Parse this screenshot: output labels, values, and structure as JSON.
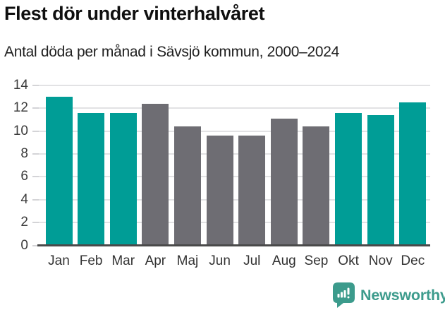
{
  "header": {
    "title": "Flest dör under vinterhalvåret",
    "subtitle": "Antal döda per månad i Sävsjö kommun, 2000–2024"
  },
  "chart_data": {
    "type": "bar",
    "title": "Flest dör under vinterhalvåret",
    "subtitle": "Antal döda per månad i Sävsjö kommun, 2000–2024",
    "categories": [
      "Jan",
      "Feb",
      "Mar",
      "Apr",
      "Maj",
      "Jun",
      "Jul",
      "Aug",
      "Sep",
      "Okt",
      "Nov",
      "Dec"
    ],
    "values": [
      13.0,
      11.6,
      11.6,
      12.4,
      10.4,
      9.6,
      9.6,
      11.1,
      10.4,
      11.6,
      11.4,
      12.5
    ],
    "winter_mask": [
      1,
      1,
      1,
      0,
      0,
      0,
      0,
      0,
      0,
      1,
      1,
      1
    ],
    "bar_colors_by_season": {
      "winter": "#009d96",
      "summer": "#6e6d73"
    },
    "ylim": [
      0,
      14
    ],
    "yticks": [
      0,
      2,
      4,
      6,
      8,
      10,
      12,
      14
    ],
    "grid": "horizontal",
    "legend": "none"
  },
  "colors": {
    "gridline": "#e2e2e4",
    "tick_mark": "#d4d4d7",
    "axis_line": "#4a4a4a",
    "title_text": "#0f0f0f",
    "subtitle_text": "#1f1f1f",
    "tick_label": "#3c3c3c",
    "brand_teal": "#3c9b8c"
  },
  "footer": {
    "brand": "Newsworthy",
    "logo_icon": "bar-chart-exclamation-badge"
  }
}
